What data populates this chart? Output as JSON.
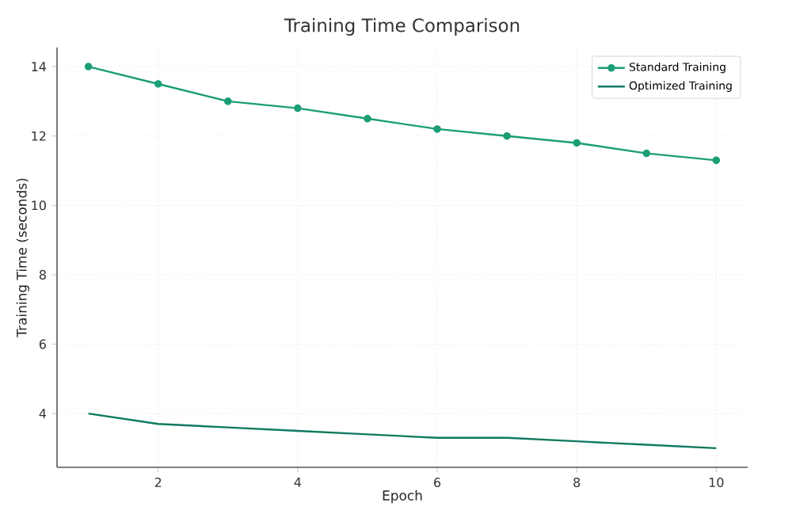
{
  "chart_data": {
    "type": "line",
    "title": "Training Time Comparison",
    "xlabel": "Epoch",
    "ylabel": "Training Time (seconds)",
    "x": [
      1,
      2,
      3,
      4,
      5,
      6,
      7,
      8,
      9,
      10
    ],
    "series": [
      {
        "name": "Standard Training",
        "color": "#1b9e77",
        "marker": "circle",
        "values": [
          14,
          13.5,
          13,
          12.8,
          12.5,
          12.2,
          12,
          11.8,
          11.5,
          11.3
        ]
      },
      {
        "name": "Optimized Training",
        "color": "#0d7a5f",
        "marker": "none",
        "values": [
          4,
          3.7,
          3.6,
          3.5,
          3.4,
          3.3,
          3.3,
          3.2,
          3.1,
          3.0
        ]
      }
    ],
    "xlim": [
      0.55,
      10.45
    ],
    "ylim": [
      2.45,
      14.55
    ],
    "xticks": [
      2,
      4,
      6,
      8,
      10
    ],
    "yticks": [
      4,
      6,
      8,
      10,
      12,
      14
    ],
    "grid": true,
    "legend": "top right",
    "line_style": "solid"
  }
}
